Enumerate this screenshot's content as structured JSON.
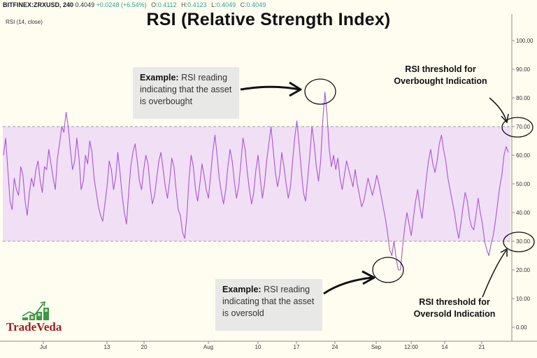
{
  "header": {
    "symbol": "BITFINEX:ZRXUSD, 240",
    "price": "0.4049",
    "change": "+0.0248 (+6.54%)",
    "open_label": "O:",
    "open_value": "0.4112",
    "high_label": "H:",
    "high_value": "0.4123",
    "low_label": "L:",
    "low_value": "0.4049",
    "close_label": "C:",
    "close_value": "0.4049",
    "indicator_label": "RSI (14, close)"
  },
  "branding": {
    "logo_text": "TradeVeda"
  },
  "callouts": {
    "overbought_bold": "Example:",
    "overbought_text": " RSI reading indicating that the asset is overbought",
    "oversold_bold": "Example:",
    "oversold_text": " RSI reading indicating that the asset is oversold"
  },
  "annotations": {
    "overbought_threshold": "RSI threshold for Overbought Indication",
    "oversold_threshold": "RSI threshold for Oversold Indication"
  },
  "colors": {
    "rsi_line": "#a855d8",
    "band_fill": "#f1dff6",
    "band_border": "#9c9c9c",
    "background": "#fffdf0"
  },
  "chart_data": {
    "type": "line",
    "title": "RSI (Relative Strength Index)",
    "ylim": [
      0,
      100
    ],
    "y_ticks": [
      "100.00",
      "90.00",
      "80.00",
      "70.00",
      "60.00",
      "50.00",
      "40.00",
      "30.00",
      "20.00",
      "10.00",
      "0.00"
    ],
    "x_ticks": [
      "Jul",
      "13",
      "20",
      "Aug",
      "10",
      "17",
      "24",
      "Sep",
      "12:00",
      "14",
      "21"
    ],
    "overbought_level": 70,
    "oversold_level": 30,
    "series": [
      {
        "values": [
          60,
          66,
          55,
          44,
          41,
          52,
          48,
          46,
          56,
          53,
          44,
          39,
          47,
          52,
          49,
          55,
          58,
          51,
          47,
          56,
          55,
          62,
          57,
          52,
          48,
          59,
          64,
          70,
          68,
          75,
          70,
          62,
          55,
          58,
          66,
          59,
          48,
          51,
          60,
          57,
          65,
          61,
          52,
          47,
          42,
          39,
          37,
          43,
          49,
          58,
          55,
          48,
          52,
          61,
          54,
          46,
          40,
          36,
          47,
          56,
          61,
          64,
          58,
          51,
          48,
          55,
          60,
          57,
          49,
          43,
          46,
          52,
          58,
          61,
          55,
          49,
          45,
          51,
          59,
          56,
          48,
          41,
          39,
          33,
          31,
          39,
          52,
          60,
          56,
          48,
          44,
          50,
          57,
          53,
          48,
          45,
          53,
          61,
          67,
          60,
          52,
          47,
          43,
          48,
          56,
          62,
          58,
          51,
          45,
          49,
          57,
          66,
          62,
          54,
          48,
          43,
          47,
          55,
          60,
          52,
          45,
          50,
          58,
          64,
          70,
          62,
          54,
          49,
          53,
          61,
          56,
          50,
          45,
          49,
          58,
          66,
          72,
          64,
          55,
          47,
          44,
          52,
          60,
          70,
          64,
          56,
          51,
          58,
          72,
          82,
          74,
          62,
          56,
          60,
          55,
          59,
          52,
          48,
          53,
          58,
          55,
          52,
          49,
          55,
          50,
          46,
          42,
          44,
          48,
          52,
          49,
          46,
          49,
          53,
          50,
          46,
          42,
          38,
          33,
          27,
          25,
          30,
          24,
          20,
          20,
          28,
          35,
          40,
          36,
          32,
          38,
          44,
          48,
          42,
          38,
          45,
          52,
          58,
          62,
          57,
          54,
          58,
          64,
          67,
          62,
          58,
          52,
          48,
          44,
          40,
          35,
          31,
          36,
          42,
          47,
          44,
          38,
          35,
          34,
          39,
          45,
          40,
          36,
          30,
          27,
          25,
          29,
          32,
          37,
          43,
          49,
          53,
          60,
          63,
          61
        ]
      }
    ]
  }
}
